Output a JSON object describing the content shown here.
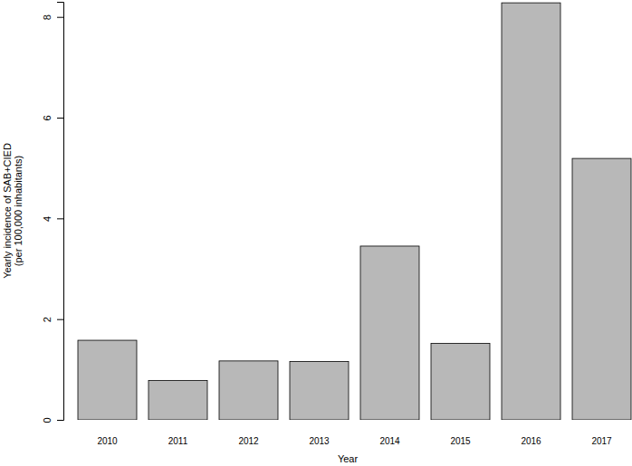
{
  "chart_data": {
    "type": "bar",
    "x_label": "Year",
    "y_label": [
      "Yearly incidence of SAB+CIED",
      "(per 100,000 inhabitants)"
    ],
    "categories": [
      "2010",
      "2011",
      "2012",
      "2013",
      "2014",
      "2015",
      "2016",
      "2017"
    ],
    "values": [
      1.58,
      0.78,
      1.17,
      1.16,
      3.45,
      1.52,
      8.28,
      5.19
    ],
    "color": "#b8b8b8",
    "ylim": [
      0,
      8.3
    ],
    "yticks": [
      0,
      2,
      4,
      6,
      8
    ],
    "grid": false
  }
}
